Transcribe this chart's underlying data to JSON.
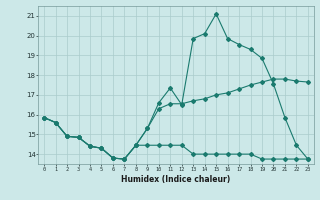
{
  "xlabel": "Humidex (Indice chaleur)",
  "xlim": [
    -0.5,
    23.5
  ],
  "ylim": [
    13.5,
    21.5
  ],
  "xticks": [
    0,
    1,
    2,
    3,
    4,
    5,
    6,
    7,
    8,
    9,
    10,
    11,
    12,
    13,
    14,
    15,
    16,
    17,
    18,
    19,
    20,
    21,
    22,
    23
  ],
  "yticks": [
    14,
    15,
    16,
    17,
    18,
    19,
    20,
    21
  ],
  "bg_color": "#cce8e8",
  "grid_color": "#aacccc",
  "line_color": "#1a7a6e",
  "lineA_x": [
    0,
    1,
    2,
    3,
    4,
    5,
    6,
    7,
    8,
    9,
    10,
    11,
    12,
    13,
    14,
    15,
    16,
    17,
    18,
    19,
    20,
    21,
    22,
    23
  ],
  "lineA_y": [
    15.85,
    15.6,
    14.9,
    14.85,
    14.4,
    14.3,
    13.8,
    13.75,
    14.45,
    14.45,
    14.45,
    14.45,
    14.45,
    14.0,
    14.0,
    14.0,
    14.0,
    14.0,
    14.0,
    13.75,
    13.75,
    13.75,
    13.75,
    13.75
  ],
  "lineB_x": [
    0,
    1,
    2,
    3,
    4,
    5,
    6,
    7,
    8,
    9,
    10,
    11,
    12,
    13,
    14,
    15,
    16,
    17,
    18,
    19,
    20,
    21,
    22,
    23
  ],
  "lineB_y": [
    15.85,
    15.6,
    14.9,
    14.85,
    14.4,
    14.3,
    13.8,
    13.75,
    14.45,
    15.3,
    16.3,
    16.55,
    16.55,
    16.7,
    16.8,
    17.0,
    17.1,
    17.3,
    17.5,
    17.65,
    17.8,
    17.8,
    17.7,
    17.65
  ],
  "lineC_x": [
    0,
    1,
    2,
    3,
    4,
    5,
    6,
    7,
    8,
    9,
    10,
    11,
    12,
    13,
    14,
    15,
    16,
    17,
    18,
    19,
    20,
    21,
    22,
    23
  ],
  "lineC_y": [
    15.85,
    15.6,
    14.9,
    14.85,
    14.4,
    14.3,
    13.8,
    13.75,
    14.45,
    15.3,
    16.6,
    17.35,
    16.5,
    19.85,
    20.1,
    21.1,
    19.85,
    19.55,
    19.3,
    18.85,
    17.55,
    15.85,
    14.45,
    13.75
  ]
}
